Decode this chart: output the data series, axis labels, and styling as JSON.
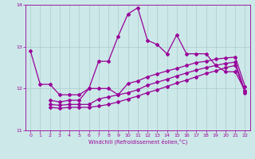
{
  "xlabel": "Windchill (Refroidissement éolien,°C)",
  "xlim": [
    -0.5,
    22.5
  ],
  "ylim": [
    11,
    14
  ],
  "yticks": [
    11,
    12,
    13,
    14
  ],
  "xticks": [
    0,
    1,
    2,
    3,
    4,
    5,
    6,
    7,
    8,
    9,
    10,
    11,
    12,
    13,
    14,
    15,
    16,
    17,
    18,
    19,
    20,
    21,
    22
  ],
  "bg_color": "#cce8e8",
  "line_color": "#990099",
  "grid_color": "#aacccc",
  "lines": [
    {
      "x": [
        0,
        1,
        2,
        3,
        4,
        5,
        6,
        7,
        8,
        9,
        10,
        11,
        12,
        13,
        14,
        15,
        16,
        17,
        18,
        19,
        20,
        21,
        22
      ],
      "y": [
        12.9,
        12.1,
        12.1,
        11.85,
        11.85,
        11.85,
        12.0,
        12.65,
        12.65,
        13.25,
        13.78,
        13.93,
        13.15,
        13.05,
        12.83,
        13.28,
        12.83,
        12.83,
        12.83,
        12.55,
        12.4,
        12.4,
        11.95
      ],
      "marker": "D",
      "markersize": 2.0,
      "linewidth": 0.9
    },
    {
      "x": [
        2,
        3,
        4,
        5,
        6,
        7,
        8,
        9,
        10,
        11,
        12,
        13,
        14,
        15,
        16,
        17,
        18,
        19,
        20,
        21,
        22
      ],
      "y": [
        11.72,
        11.68,
        11.72,
        11.72,
        12.0,
        12.0,
        12.0,
        11.85,
        12.12,
        12.18,
        12.28,
        12.35,
        12.42,
        12.48,
        12.55,
        12.62,
        12.65,
        12.7,
        12.73,
        12.75,
        12.05
      ],
      "marker": "D",
      "markersize": 2.0,
      "linewidth": 0.9
    },
    {
      "x": [
        2,
        3,
        4,
        5,
        6,
        7,
        8,
        9,
        10,
        11,
        12,
        13,
        14,
        15,
        16,
        17,
        18,
        19,
        20,
        21,
        22
      ],
      "y": [
        11.62,
        11.6,
        11.62,
        11.62,
        11.62,
        11.75,
        11.8,
        11.85,
        11.9,
        11.97,
        12.08,
        12.15,
        12.22,
        12.3,
        12.37,
        12.44,
        12.5,
        12.55,
        12.6,
        12.63,
        11.93
      ],
      "marker": "D",
      "markersize": 2.0,
      "linewidth": 0.9
    },
    {
      "x": [
        2,
        3,
        4,
        5,
        6,
        7,
        8,
        9,
        10,
        11,
        12,
        13,
        14,
        15,
        16,
        17,
        18,
        19,
        20,
        21,
        22
      ],
      "y": [
        11.55,
        11.53,
        11.55,
        11.55,
        11.55,
        11.58,
        11.62,
        11.68,
        11.75,
        11.82,
        11.9,
        11.97,
        12.05,
        12.13,
        12.2,
        12.28,
        12.36,
        12.42,
        12.5,
        12.55,
        11.9
      ],
      "marker": "D",
      "markersize": 2.0,
      "linewidth": 0.9
    }
  ]
}
